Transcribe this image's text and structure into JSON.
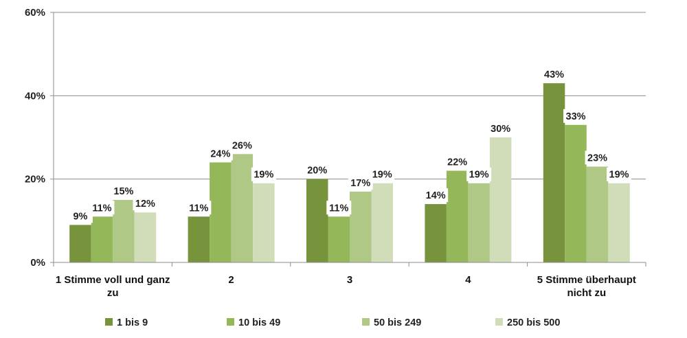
{
  "chart_data": {
    "type": "bar",
    "title": "",
    "xlabel": "",
    "ylabel": "",
    "ylim": [
      0,
      60
    ],
    "yticks": [
      "0%",
      "20%",
      "40%",
      "60%"
    ],
    "ytick_values": [
      0,
      20,
      40,
      60
    ],
    "grid": true,
    "legend_position": "bottom",
    "categories": [
      [
        "1 Stimme voll und ganz",
        "zu"
      ],
      [
        "2"
      ],
      [
        "3"
      ],
      [
        "4"
      ],
      [
        "5 Stimme überhaupt",
        "nicht zu"
      ]
    ],
    "series": [
      {
        "name": "1 bis 9",
        "color": "#77933C",
        "values": [
          9,
          11,
          20,
          14,
          43
        ],
        "labels": [
          "9%",
          "11%",
          "20%",
          "14%",
          "43%"
        ]
      },
      {
        "name": "10 bis 49",
        "color": "#94B75A",
        "values": [
          11,
          24,
          11,
          22,
          33
        ],
        "labels": [
          "11%",
          "24%",
          "11%",
          "22%",
          "33%"
        ]
      },
      {
        "name": "50 bis 249",
        "color": "#AFC886",
        "values": [
          15,
          26,
          17,
          19,
          23
        ],
        "labels": [
          "15%",
          "26%",
          "17%",
          "19%",
          "23%"
        ]
      },
      {
        "name": "250 bis 500",
        "color": "#D0DDB8",
        "values": [
          12,
          19,
          19,
          30,
          19
        ],
        "labels": [
          "12%",
          "19%",
          "19%",
          "30%",
          "19%"
        ]
      }
    ]
  }
}
